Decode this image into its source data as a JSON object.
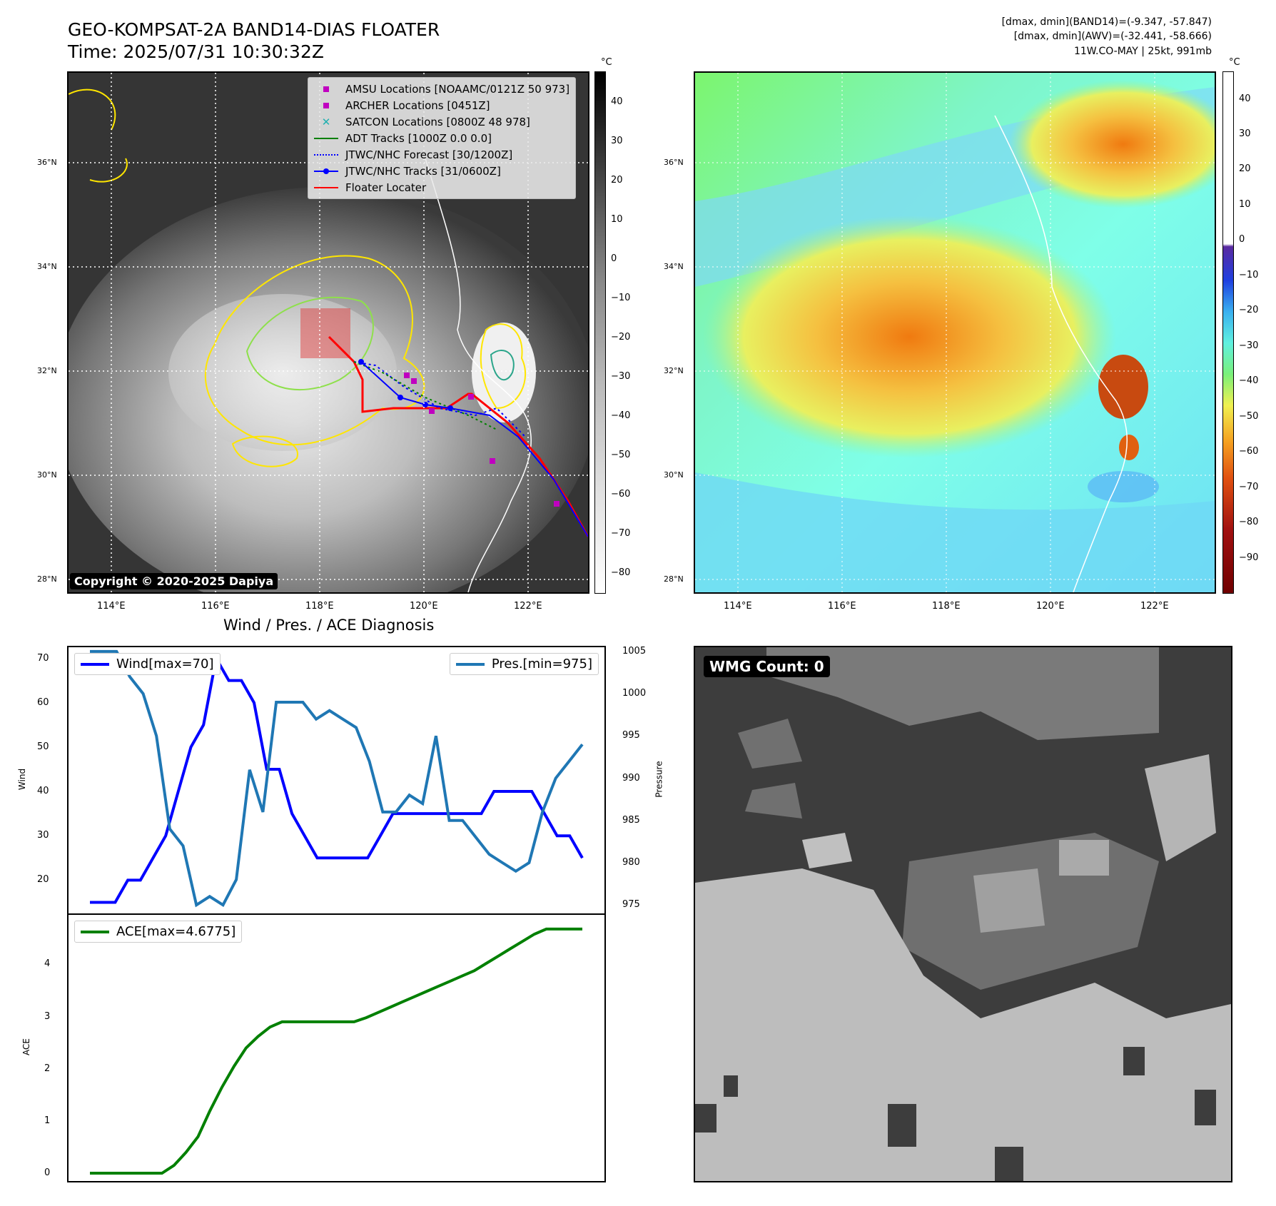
{
  "header": {
    "title": "GEO-KOMPSAT-2A BAND14-DIAS FLOATER",
    "time": "Time: 2025/07/31 10:30:32Z",
    "dmax_band14": "[dmax, dmin](BAND14)=(-9.347, -57.847)",
    "dmax_awv": "[dmax, dmin](AWV)=(-32.441, -58.666)",
    "storm": "11W.CO-MAY | 25kt, 991mb"
  },
  "map": {
    "lat_labels": [
      "36°N",
      "34°N",
      "32°N",
      "30°N",
      "28°N"
    ],
    "lon_labels": [
      "114°E",
      "116°E",
      "118°E",
      "120°E",
      "122°E"
    ],
    "copyright": "Copyright © 2020-2025 Dapiya",
    "legend": [
      {
        "label": "AMSU Locations [NOAAMC/0121Z 50 973]",
        "color": "#c000c0",
        "marker": "square"
      },
      {
        "label": "ARCHER Locations [0451Z]",
        "color": "#c000c0",
        "marker": "square"
      },
      {
        "label": "SATCON Locations [0800Z 48 978]",
        "color": "#20b0b0",
        "marker": "x"
      },
      {
        "label": "ADT Tracks [1000Z 0.0 0.0]",
        "color": "#008000",
        "marker": "line"
      },
      {
        "label": "JTWC/NHC Forecast [30/1200Z]",
        "color": "#0000ff",
        "marker": "dotted"
      },
      {
        "label": "JTWC/NHC Tracks [31/0600Z]",
        "color": "#0000ff",
        "marker": "line-dot"
      },
      {
        "label": "Floater Locater",
        "color": "#ff0000",
        "marker": "line"
      }
    ]
  },
  "cbar_ir": {
    "unit": "°C",
    "ticks": [
      "40",
      "30",
      "20",
      "10",
      "0",
      "−10",
      "−20",
      "−30",
      "−40",
      "−50",
      "−60",
      "−70",
      "−80"
    ]
  },
  "cbar_wv": {
    "unit": "°C",
    "ticks": [
      "40",
      "30",
      "20",
      "10",
      "0",
      "−10",
      "−20",
      "−30",
      "−40",
      "−50",
      "−60",
      "−70",
      "−80",
      "−90"
    ]
  },
  "diag": {
    "title": "Wind / Pres. / ACE Diagnosis",
    "wind_label": "Wind[max=70]",
    "pres_label": "Pres.[min=975]",
    "ace_label": "ACE[max=4.6775]",
    "ylabel_wind": "Wind",
    "ylabel_pres": "Pressure",
    "ylabel_ace": "ACE",
    "wind_ticks": [
      "70",
      "60",
      "50",
      "40",
      "30",
      "20"
    ],
    "pres_ticks": [
      "1005",
      "1000",
      "995",
      "990",
      "985",
      "980",
      "975"
    ],
    "ace_ticks": [
      "4",
      "3",
      "2",
      "1",
      "0"
    ]
  },
  "wmg": {
    "label": "WMG Count: 0"
  },
  "chart_data": [
    {
      "type": "line",
      "title": "Wind / Pres. / ACE Diagnosis",
      "ylabel": "Wind",
      "ylim": [
        12.5,
        72.5
      ],
      "series": [
        {
          "name": "Wind[max=70]",
          "color": "#0000ff",
          "values": [
            15,
            15,
            15,
            20,
            20,
            25,
            30,
            40,
            50,
            55,
            70,
            65,
            65,
            60,
            45,
            45,
            35,
            30,
            25,
            25,
            25,
            25,
            25,
            30,
            35,
            35,
            35,
            35,
            35,
            35,
            35,
            35,
            40,
            40,
            40,
            40,
            35,
            30,
            30,
            25
          ]
        }
      ]
    },
    {
      "type": "line",
      "ylabel": "Pressure",
      "ylim": [
        974,
        1005.5
      ],
      "series": [
        {
          "name": "Pres.[min=975]",
          "color": "#1f77b4",
          "values": [
            1005,
            1005,
            1005,
            1002,
            1000,
            995,
            984,
            982,
            975,
            976,
            975,
            978,
            991,
            986,
            999,
            999,
            999,
            997,
            998,
            997,
            996,
            992,
            986,
            986,
            988,
            987,
            995,
            985,
            985,
            983,
            981,
            980,
            979,
            980,
            986,
            990,
            992,
            994
          ]
        }
      ]
    },
    {
      "type": "area",
      "ylabel": "ACE",
      "ylim": [
        -0.15,
        4.95
      ],
      "series": [
        {
          "name": "ACE[max=4.6775]",
          "color": "#008000",
          "values": [
            0,
            0,
            0,
            0,
            0,
            0,
            0,
            0.15,
            0.4,
            0.7,
            1.2,
            1.65,
            2.05,
            2.4,
            2.62,
            2.8,
            2.9,
            2.9,
            2.9,
            2.9,
            2.9,
            2.9,
            2.9,
            2.98,
            3.08,
            3.18,
            3.28,
            3.38,
            3.48,
            3.58,
            3.68,
            3.78,
            3.88,
            4.02,
            4.16,
            4.3,
            4.44,
            4.58,
            4.6775,
            4.6775,
            4.6775,
            4.6775
          ]
        }
      ]
    }
  ]
}
